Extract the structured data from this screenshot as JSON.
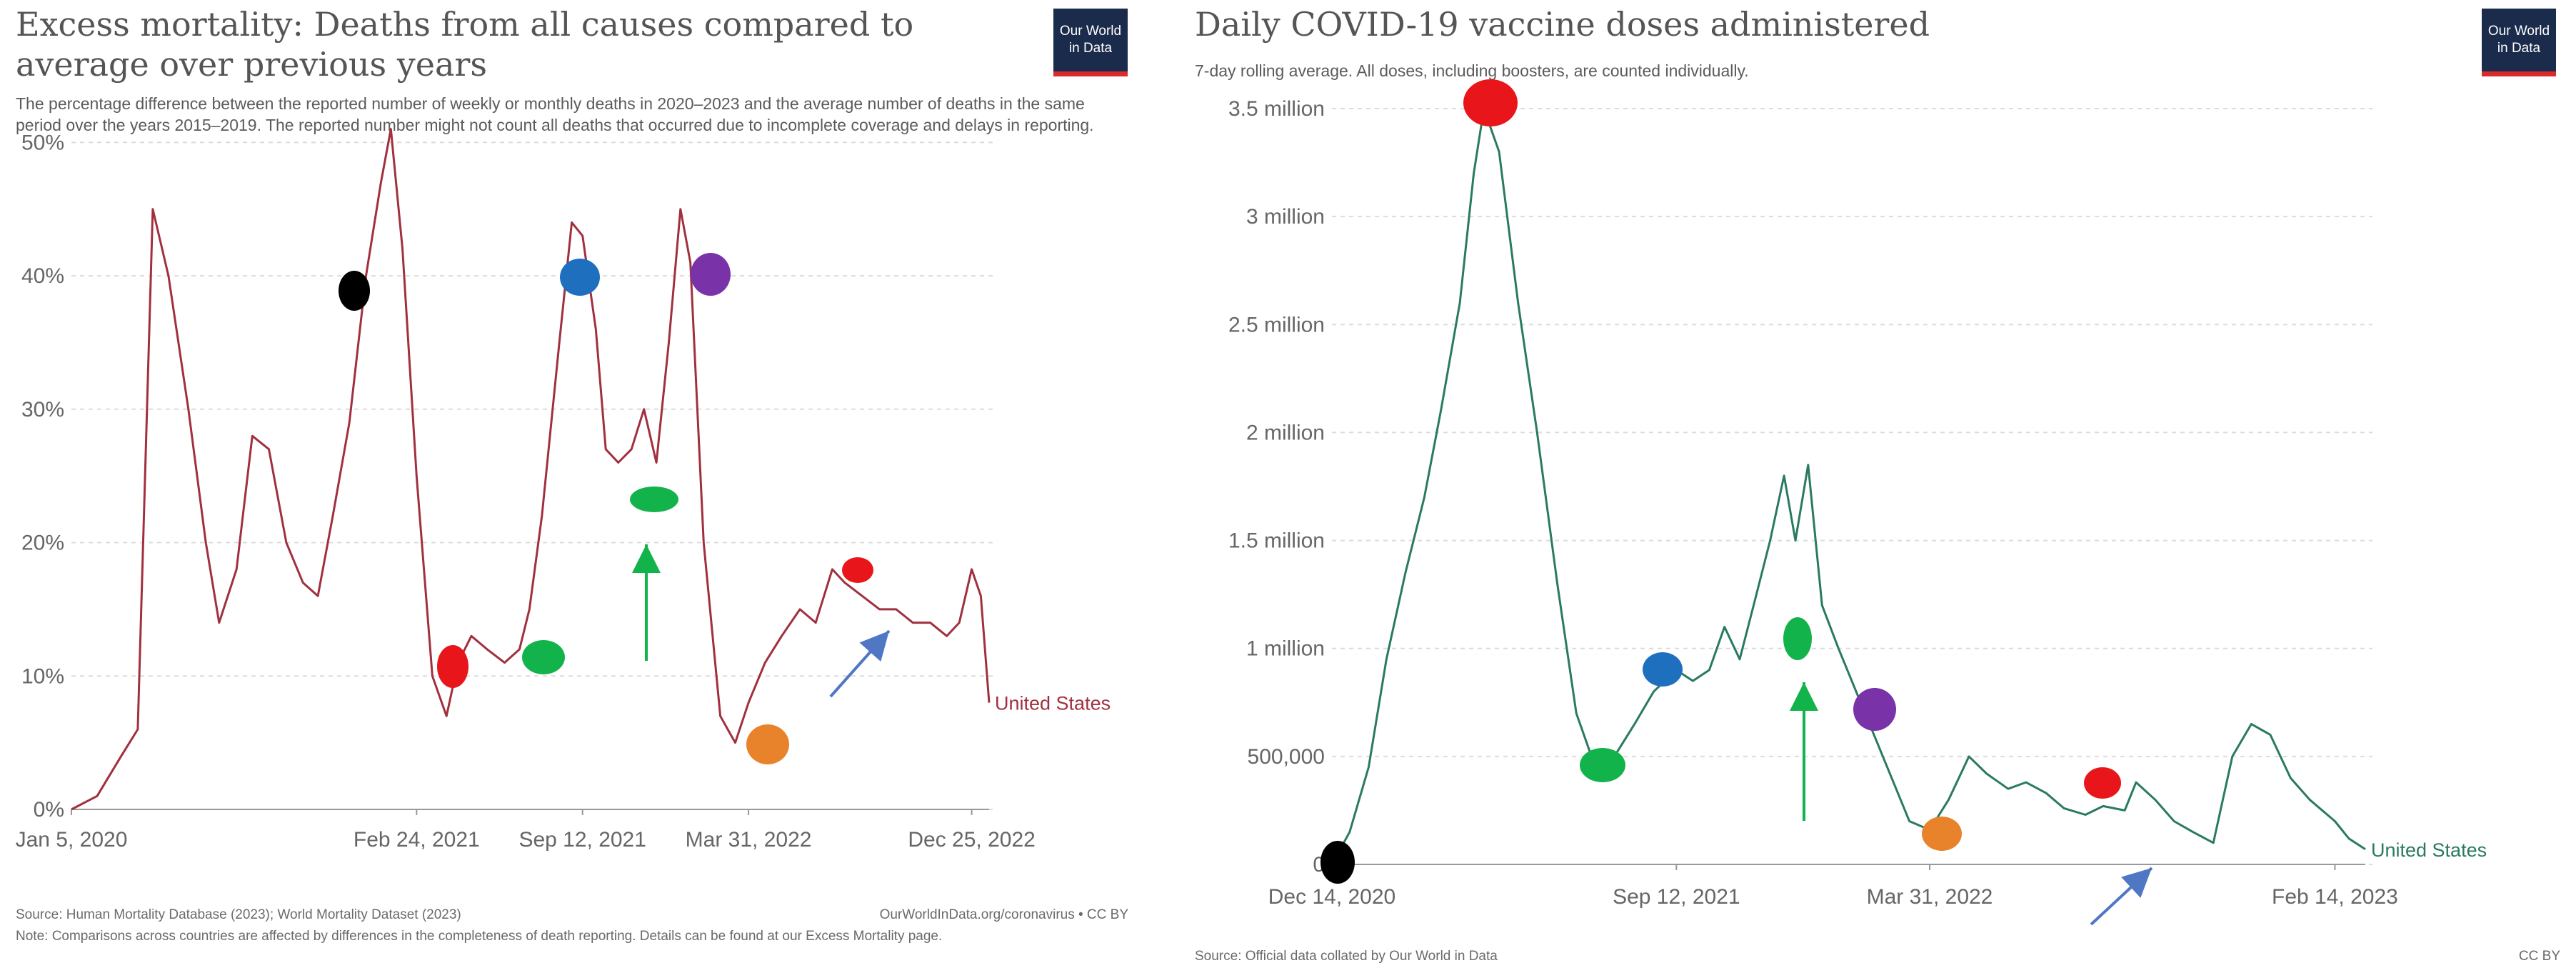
{
  "colors": {
    "left_line": "#a1303f",
    "right_line": "#2a7a63",
    "logo_bg": "#1b2b4b",
    "logo_accent": "#d92b2b",
    "marker_black": "#000000",
    "marker_red": "#e8151a",
    "marker_blue": "#1f6fbf",
    "marker_green": "#13b34b",
    "marker_purple": "#7a32a8",
    "marker_orange": "#e8832b",
    "arrow_blue": "#4f77c4",
    "arrow_green": "#13b34b"
  },
  "left": {
    "title": "Excess mortality: Deaths from all causes compared to average over previous years",
    "subtitle": "The percentage difference between the reported number of weekly or monthly deaths in 2020–2023 and the average number of deaths in the same period over the years 2015–2019. The reported number might not count all deaths that occurred due to incomplete coverage and delays in reporting.",
    "logo": "Our World in Data",
    "source": "Source: Human Mortality Database (2023); World Mortality Dataset (2023)",
    "credit": "OurWorldInData.org/coronavirus • CC BY",
    "note": "Note: Comparisons across countries are affected by differences in the completeness of death reporting. Details can be found at our Excess Mortality page."
  },
  "right": {
    "title": "Daily COVID-19 vaccine doses administered",
    "subtitle": "7-day rolling average. All doses, including boosters, are counted individually.",
    "logo": "Our World in Data",
    "source": "Source: Official data collated by Our World in Data",
    "credit": "CC BY"
  },
  "chart_data": [
    {
      "type": "line",
      "title": "Excess mortality: Deaths from all causes compared to average over previous years",
      "x_ticks": [
        "Jan 5, 2020",
        "Feb 24, 2021",
        "Sep 12, 2021",
        "Mar 31, 2022",
        "Dec 25, 2022"
      ],
      "y_ticks": [
        "0%",
        "10%",
        "20%",
        "30%",
        "40%",
        "50%"
      ],
      "ylim": [
        0,
        52
      ],
      "series": [
        {
          "name": "United States",
          "x": [
            "2020-01-05",
            "2020-02-05",
            "2020-03-05",
            "2020-03-25",
            "2020-04-12",
            "2020-05-01",
            "2020-05-25",
            "2020-06-15",
            "2020-07-01",
            "2020-07-22",
            "2020-08-10",
            "2020-08-30",
            "2020-09-20",
            "2020-10-10",
            "2020-10-28",
            "2020-11-15",
            "2020-12-05",
            "2020-12-25",
            "2021-01-12",
            "2021-01-24",
            "2021-02-07",
            "2021-02-24",
            "2021-03-15",
            "2021-04-01",
            "2021-04-15",
            "2021-05-01",
            "2021-05-20",
            "2021-06-10",
            "2021-06-28",
            "2021-07-10",
            "2021-07-25",
            "2021-08-15",
            "2021-08-30",
            "2021-09-12",
            "2021-09-28",
            "2021-10-10",
            "2021-10-25",
            "2021-11-10",
            "2021-11-25",
            "2021-12-10",
            "2021-12-25",
            "2022-01-08",
            "2022-01-20",
            "2022-02-05",
            "2022-02-25",
            "2022-03-15",
            "2022-03-31",
            "2022-04-20",
            "2022-05-10",
            "2022-06-01",
            "2022-06-20",
            "2022-07-10",
            "2022-07-25",
            "2022-08-15",
            "2022-09-05",
            "2022-09-25",
            "2022-10-15",
            "2022-11-05",
            "2022-11-25",
            "2022-12-10",
            "2022-12-25",
            "2023-01-05",
            "2023-01-15"
          ],
          "y": [
            0,
            1,
            4,
            6,
            45,
            40,
            30,
            20,
            14,
            18,
            28,
            27,
            20,
            17,
            16,
            22,
            29,
            40,
            47,
            51,
            42,
            25,
            10,
            7,
            11,
            13,
            12,
            11,
            12,
            15,
            22,
            35,
            44,
            43,
            36,
            27,
            26,
            27,
            30,
            26,
            35,
            45,
            41,
            20,
            7,
            5,
            8,
            11,
            13,
            15,
            14,
            18,
            17,
            16,
            15,
            15,
            14,
            14,
            13,
            14,
            18,
            16,
            8
          ]
        }
      ],
      "annotations": {
        "markers": [
          "black",
          "red",
          "green",
          "green",
          "blue",
          "purple",
          "orange",
          "red"
        ],
        "arrows": [
          "green-up",
          "blue-diagonal"
        ]
      }
    },
    {
      "type": "line",
      "title": "Daily COVID-19 vaccine doses administered",
      "x_ticks": [
        "Dec 14, 2020",
        "Sep 12, 2021",
        "Mar 31, 2022",
        "Feb 14, 2023"
      ],
      "y_ticks": [
        "0",
        "500,000",
        "1 million",
        "1.5 million",
        "2 million",
        "2.5 million",
        "3 million",
        "3.5 million"
      ],
      "ylim": [
        0,
        3500000
      ],
      "series": [
        {
          "name": "United States",
          "x": [
            "2020-12-14",
            "2020-12-28",
            "2021-01-12",
            "2021-01-26",
            "2021-02-10",
            "2021-02-25",
            "2021-03-10",
            "2021-03-25",
            "2021-04-05",
            "2021-04-13",
            "2021-04-25",
            "2021-05-10",
            "2021-05-25",
            "2021-06-10",
            "2021-06-25",
            "2021-07-10",
            "2021-07-25",
            "2021-08-10",
            "2021-08-25",
            "2021-09-12",
            "2021-09-25",
            "2021-10-08",
            "2021-10-20",
            "2021-11-01",
            "2021-11-12",
            "2021-11-25",
            "2021-12-06",
            "2021-12-15",
            "2021-12-25",
            "2022-01-05",
            "2022-01-18",
            "2022-02-01",
            "2022-02-15",
            "2022-03-01",
            "2022-03-15",
            "2022-03-31",
            "2022-04-15",
            "2022-05-01",
            "2022-05-15",
            "2022-06-01",
            "2022-06-15",
            "2022-07-01",
            "2022-07-15",
            "2022-08-01",
            "2022-08-15",
            "2022-09-01",
            "2022-09-10",
            "2022-09-25",
            "2022-10-10",
            "2022-10-25",
            "2022-11-10",
            "2022-11-25",
            "2022-12-10",
            "2022-12-25",
            "2023-01-10",
            "2023-01-25",
            "2023-02-14",
            "2023-02-25",
            "2023-03-10"
          ],
          "y": [
            0,
            150000,
            450000,
            950000,
            1350000,
            1700000,
            2100000,
            2600000,
            3200000,
            3500000,
            3300000,
            2600000,
            2000000,
            1300000,
            700000,
            450000,
            500000,
            650000,
            800000,
            900000,
            850000,
            900000,
            1100000,
            950000,
            1200000,
            1500000,
            1800000,
            1500000,
            1850000,
            1200000,
            1000000,
            800000,
            600000,
            400000,
            200000,
            160000,
            300000,
            500000,
            420000,
            350000,
            380000,
            330000,
            260000,
            230000,
            270000,
            250000,
            380000,
            300000,
            200000,
            150000,
            100000,
            500000,
            650000,
            600000,
            400000,
            300000,
            200000,
            120000,
            70000
          ]
        }
      ],
      "annotations": {
        "markers": [
          "black",
          "red",
          "green",
          "blue",
          "green",
          "purple",
          "orange",
          "red"
        ],
        "arrows": [
          "green-up",
          "blue-diagonal"
        ]
      }
    }
  ]
}
